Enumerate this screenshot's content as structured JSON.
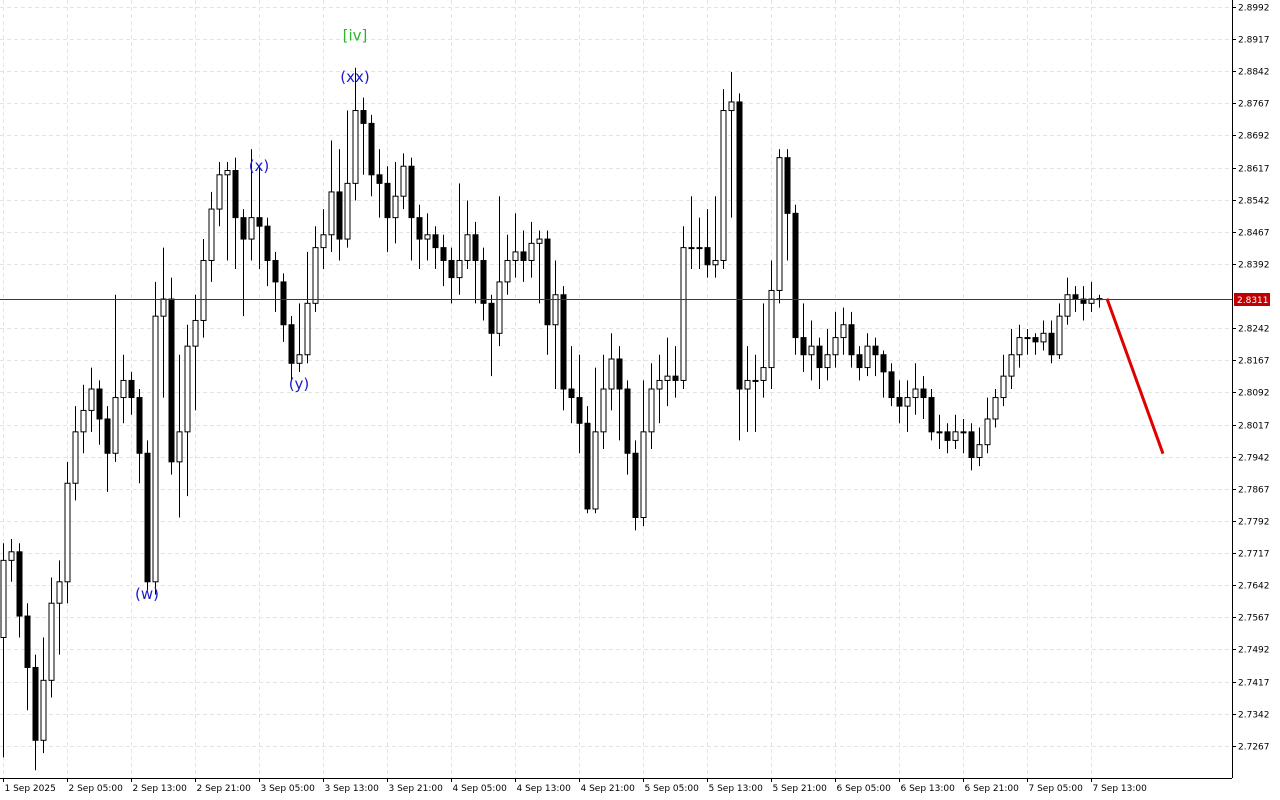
{
  "chart_data": {
    "type": "candlestick",
    "open": [
      2.752,
      2.77,
      2.772,
      2.757,
      2.745,
      2.728,
      2.742,
      2.76,
      2.765,
      2.788,
      2.8,
      2.805,
      2.81,
      2.803,
      2.795,
      2.808,
      2.812,
      2.808,
      2.795,
      2.765,
      2.827,
      2.831,
      2.793,
      2.8,
      2.82,
      2.826,
      2.84,
      2.852,
      2.86,
      2.861,
      2.85,
      2.845,
      2.85,
      2.848,
      2.84,
      2.835,
      2.825,
      2.816,
      2.818,
      2.83,
      2.843,
      2.846,
      2.856,
      2.845,
      2.858,
      2.875,
      2.872,
      2.86,
      2.858,
      2.85,
      2.855,
      2.862,
      2.85,
      2.845,
      2.846,
      2.843,
      2.84,
      2.836,
      2.84,
      2.846,
      2.84,
      2.83,
      2.823,
      2.835,
      2.84,
      2.842,
      2.84,
      2.844,
      2.845,
      2.825,
      2.832,
      2.81,
      2.808,
      2.802,
      2.782,
      2.8,
      2.81,
      2.817,
      2.81,
      2.795,
      2.78,
      2.8,
      2.81,
      2.812,
      2.813,
      2.812,
      2.843,
      2.843,
      2.843,
      2.839,
      2.84,
      2.875,
      2.877,
      2.81,
      2.812,
      2.812,
      2.815,
      2.833,
      2.864,
      2.851,
      2.822,
      2.818,
      2.82,
      2.815,
      2.818,
      2.822,
      2.825,
      2.818,
      2.815,
      2.82,
      2.818,
      2.814,
      2.808,
      2.806,
      2.808,
      2.81,
      2.808,
      2.8,
      2.8,
      2.798,
      2.8,
      2.8,
      2.794,
      2.797,
      2.803,
      2.808,
      2.813,
      2.818,
      2.822,
      2.822,
      2.821,
      2.823,
      2.818,
      2.827,
      2.832,
      2.831,
      2.83,
      2.831
    ],
    "high": [
      2.774,
      2.775,
      2.774,
      2.76,
      2.748,
      2.752,
      2.766,
      2.77,
      2.793,
      2.806,
      2.811,
      2.815,
      2.812,
      2.806,
      2.832,
      2.818,
      2.814,
      2.81,
      2.798,
      2.835,
      2.843,
      2.836,
      2.818,
      2.825,
      2.832,
      2.845,
      2.856,
      2.863,
      2.863,
      2.864,
      2.852,
      2.866,
      2.862,
      2.85,
      2.842,
      2.837,
      2.827,
      2.83,
      2.842,
      2.848,
      2.852,
      2.868,
      2.866,
      2.875,
      2.885,
      2.878,
      2.874,
      2.866,
      2.862,
      2.863,
      2.865,
      2.864,
      2.853,
      2.851,
      2.848,
      2.846,
      2.843,
      2.858,
      2.854,
      2.849,
      2.843,
      2.832,
      2.855,
      2.846,
      2.851,
      2.847,
      2.849,
      2.847,
      2.847,
      2.84,
      2.834,
      2.82,
      2.818,
      2.806,
      2.815,
      2.818,
      2.823,
      2.82,
      2.812,
      2.798,
      2.812,
      2.816,
      2.818,
      2.822,
      2.82,
      2.848,
      2.855,
      2.85,
      2.852,
      2.855,
      2.88,
      2.884,
      2.879,
      2.82,
      2.818,
      2.83,
      2.84,
      2.866,
      2.866,
      2.853,
      2.83,
      2.826,
      2.822,
      2.824,
      2.828,
      2.829,
      2.828,
      2.82,
      2.823,
      2.822,
      2.819,
      2.816,
      2.812,
      2.812,
      2.816,
      2.813,
      2.81,
      2.804,
      2.802,
      2.804,
      2.803,
      2.802,
      2.801,
      2.808,
      2.81,
      2.818,
      2.824,
      2.825,
      2.824,
      2.823,
      2.826,
      2.826,
      2.83,
      2.836,
      2.834,
      2.834,
      2.835,
      2.832
    ],
    "low": [
      2.724,
      2.765,
      2.752,
      2.735,
      2.721,
      2.725,
      2.738,
      2.748,
      2.76,
      2.784,
      2.795,
      2.8,
      2.797,
      2.786,
      2.793,
      2.802,
      2.804,
      2.788,
      2.763,
      2.762,
      2.808,
      2.79,
      2.78,
      2.785,
      2.805,
      2.822,
      2.835,
      2.848,
      2.84,
      2.838,
      2.827,
      2.84,
      2.838,
      2.834,
      2.828,
      2.821,
      2.812,
      2.814,
      2.816,
      2.828,
      2.838,
      2.842,
      2.84,
      2.843,
      2.854,
      2.86,
      2.855,
      2.85,
      2.842,
      2.844,
      2.852,
      2.84,
      2.838,
      2.84,
      2.838,
      2.834,
      2.83,
      2.832,
      2.838,
      2.83,
      2.826,
      2.813,
      2.82,
      2.832,
      2.836,
      2.835,
      2.836,
      2.83,
      2.818,
      2.81,
      2.805,
      2.802,
      2.795,
      2.781,
      2.781,
      2.796,
      2.805,
      2.798,
      2.79,
      2.777,
      2.778,
      2.796,
      2.802,
      2.806,
      2.808,
      2.81,
      2.838,
      2.838,
      2.836,
      2.836,
      2.838,
      2.85,
      2.798,
      2.8,
      2.8,
      2.808,
      2.81,
      2.83,
      2.84,
      2.818,
      2.814,
      2.812,
      2.81,
      2.812,
      2.815,
      2.818,
      2.815,
      2.812,
      2.813,
      2.813,
      2.808,
      2.806,
      2.802,
      2.8,
      2.804,
      2.803,
      2.798,
      2.796,
      2.795,
      2.796,
      2.795,
      2.791,
      2.792,
      2.795,
      2.801,
      2.806,
      2.81,
      2.815,
      2.818,
      2.818,
      2.819,
      2.816,
      2.817,
      2.825,
      2.828,
      2.826,
      2.828,
      2.829
    ],
    "close": [
      2.77,
      2.772,
      2.757,
      2.745,
      2.728,
      2.742,
      2.76,
      2.765,
      2.788,
      2.8,
      2.805,
      2.81,
      2.803,
      2.795,
      2.808,
      2.812,
      2.808,
      2.795,
      2.765,
      2.827,
      2.831,
      2.793,
      2.8,
      2.82,
      2.826,
      2.84,
      2.852,
      2.86,
      2.861,
      2.85,
      2.845,
      2.85,
      2.848,
      2.84,
      2.835,
      2.825,
      2.816,
      2.818,
      2.83,
      2.843,
      2.846,
      2.856,
      2.845,
      2.858,
      2.875,
      2.872,
      2.86,
      2.858,
      2.85,
      2.855,
      2.862,
      2.85,
      2.845,
      2.846,
      2.843,
      2.84,
      2.836,
      2.84,
      2.846,
      2.84,
      2.83,
      2.823,
      2.835,
      2.84,
      2.842,
      2.84,
      2.844,
      2.845,
      2.825,
      2.832,
      2.81,
      2.808,
      2.802,
      2.782,
      2.8,
      2.81,
      2.817,
      2.81,
      2.795,
      2.78,
      2.8,
      2.81,
      2.812,
      2.813,
      2.812,
      2.843,
      2.843,
      2.843,
      2.839,
      2.84,
      2.875,
      2.877,
      2.81,
      2.812,
      2.812,
      2.815,
      2.833,
      2.864,
      2.851,
      2.822,
      2.818,
      2.82,
      2.815,
      2.818,
      2.822,
      2.825,
      2.818,
      2.815,
      2.82,
      2.818,
      2.814,
      2.808,
      2.806,
      2.808,
      2.81,
      2.808,
      2.8,
      2.8,
      2.798,
      2.8,
      2.8,
      2.794,
      2.797,
      2.803,
      2.808,
      2.813,
      2.818,
      2.822,
      2.822,
      2.821,
      2.823,
      2.818,
      2.827,
      2.832,
      2.831,
      2.83,
      2.831,
      2.8311
    ],
    "xlim": [
      -0.375,
      153.625
    ],
    "xticks": [
      {
        "value": 0,
        "label": "1 Sep 2025"
      },
      {
        "value": 8,
        "label": "2 Sep 05:00"
      },
      {
        "value": 16,
        "label": "2 Sep 13:00"
      },
      {
        "value": 24,
        "label": "2 Sep 21:00"
      },
      {
        "value": 32,
        "label": "3 Sep 05:00"
      },
      {
        "value": 40,
        "label": "3 Sep 13:00"
      },
      {
        "value": 48,
        "label": "3 Sep 21:00"
      },
      {
        "value": 56,
        "label": "4 Sep 05:00"
      },
      {
        "value": 64,
        "label": "4 Sep 13:00"
      },
      {
        "value": 72,
        "label": "4 Sep 21:00"
      },
      {
        "value": 80,
        "label": "5 Sep 05:00"
      },
      {
        "value": 88,
        "label": "5 Sep 13:00"
      },
      {
        "value": 96,
        "label": "5 Sep 21:00"
      },
      {
        "value": 104,
        "label": "6 Sep 05:00"
      },
      {
        "value": 112,
        "label": "6 Sep 13:00"
      },
      {
        "value": 120,
        "label": "6 Sep 21:00"
      },
      {
        "value": 128,
        "label": "7 Sep 05:00"
      },
      {
        "value": 136,
        "label": "7 Sep 13:00"
      }
    ],
    "ylim": [
      2.7192,
      2.9008
    ],
    "yticks": [
      2.8992,
      2.8917,
      2.8842,
      2.8767,
      2.8692,
      2.8617,
      2.8542,
      2.8467,
      2.8392,
      2.8242,
      2.8167,
      2.8092,
      2.8017,
      2.7942,
      2.7867,
      2.7792,
      2.7717,
      2.7642,
      2.7567,
      2.7492,
      2.7417,
      2.7342,
      2.7267
    ],
    "grid": true,
    "current_price": 2.8311,
    "current_price_color": "#c00000",
    "forecast": {
      "x": [
        138,
        145
      ],
      "y": [
        2.8311,
        2.7949
      ],
      "color": "#e00000"
    },
    "annotations": [
      {
        "text": "(w)",
        "x": 18,
        "y": 2.7624,
        "color": "#1a1acc"
      },
      {
        "text": "(x)",
        "x": 32,
        "y": 2.8623,
        "color": "#1a1acc"
      },
      {
        "text": "(y)",
        "x": 37,
        "y": 2.8114,
        "color": "#1a1acc"
      },
      {
        "text": "(xx)",
        "x": 44,
        "y": 2.8831,
        "color": "#1a1acc"
      },
      {
        "text": "[iv]",
        "x": 44,
        "y": 2.8927,
        "color": "#2db52d"
      }
    ]
  }
}
